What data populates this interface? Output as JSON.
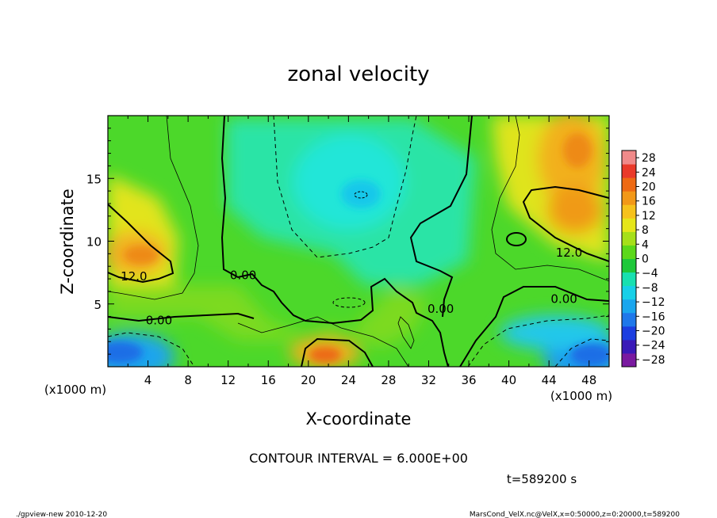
{
  "chart_data": {
    "type": "contour",
    "title": "zonal velocity",
    "xlabel": "X-coordinate",
    "ylabel": "Z-coordinate",
    "x_unit_label": "(x1000 m)",
    "y_unit_label": "(x1000 m)",
    "xlim": [
      0,
      50
    ],
    "ylim": [
      0,
      20
    ],
    "xticks": [
      4,
      8,
      12,
      16,
      20,
      24,
      28,
      32,
      36,
      40,
      44,
      48
    ],
    "yticks": [
      5,
      10,
      15
    ],
    "contour_interval_text": "CONTOUR INTERVAL = 6.000E+00",
    "time_text": "t=589200 s",
    "contour_labels": [
      {
        "text": "12.0",
        "x": 2.6,
        "y": 7.2
      },
      {
        "text": "0.00",
        "x": 5.1,
        "y": 3.7
      },
      {
        "text": "0.00",
        "x": 13.5,
        "y": 7.3
      },
      {
        "text": "0.00",
        "x": 33.2,
        "y": 4.6
      },
      {
        "text": "0.00",
        "x": 45.5,
        "y": 5.4
      },
      {
        "text": "12.0",
        "x": 46.0,
        "y": 9.1
      }
    ],
    "colorbar": {
      "ticks": [
        28,
        24,
        20,
        16,
        12,
        8,
        4,
        0,
        -4,
        -8,
        -12,
        -16,
        -20,
        -24,
        -28
      ],
      "tick_labels": [
        "28",
        "24",
        "20",
        "16",
        "12",
        "8",
        "4",
        "0",
        "−4",
        "−8",
        "−12",
        "−16",
        "−20",
        "−24",
        "−28"
      ],
      "range": [
        -30,
        30
      ],
      "colors": [
        "#7a1aa0",
        "#3a1ab8",
        "#1c3ee0",
        "#1f78ea",
        "#1aa6ee",
        "#17d0e8",
        "#18e0b0",
        "#1ec83a",
        "#5cd81a",
        "#a6e01a",
        "#e6e61a",
        "#f6c21c",
        "#f29818",
        "#ee6a14",
        "#ea3a2a",
        "#f08a8a"
      ]
    },
    "features": [
      {
        "kind": "jet-core",
        "x": 3.5,
        "y": 8.5,
        "value": 16
      },
      {
        "kind": "jet-core",
        "x": 47,
        "y": 14,
        "value": 20
      },
      {
        "kind": "jet-core",
        "x": 23.5,
        "y": 1.2,
        "value": 20
      },
      {
        "kind": "minimum",
        "x": 25.5,
        "y": 13.5,
        "value": -12
      },
      {
        "kind": "minimum",
        "x": 3,
        "y": 1.3,
        "value": -18
      },
      {
        "kind": "minimum",
        "x": 47,
        "y": 1.3,
        "value": -18
      }
    ]
  },
  "footer": {
    "left": "./gpview-new   2010-12-20",
    "right": "MarsCond_VelX.nc@VelX,x=0:50000,z=0:20000,t=589200"
  }
}
